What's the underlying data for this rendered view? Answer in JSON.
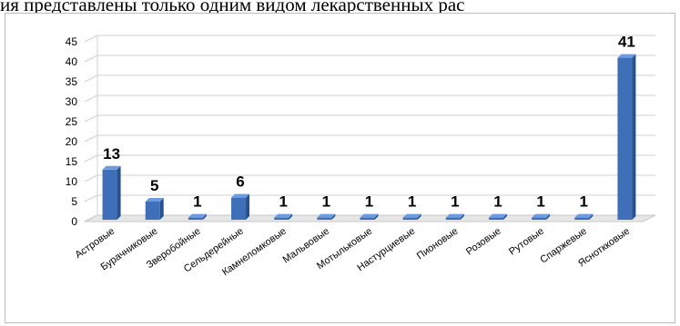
{
  "document": {
    "partial_line": "ия представлены только одним видом лекарственных рас"
  },
  "chart_data": {
    "type": "bar",
    "categories": [
      "Астровые",
      "Бурачниковые",
      "Зверобойные",
      "Сельдерейные",
      "Камнеломковые",
      "Мальвовые",
      "Мотыльковые",
      "Настурциевые",
      "Пионовые",
      "Розовые",
      "Рутовые",
      "Спаржевые",
      "Ясноткковые"
    ],
    "values": [
      13,
      5,
      1,
      6,
      1,
      1,
      1,
      1,
      1,
      1,
      1,
      1,
      41
    ],
    "yticks": [
      0,
      5,
      10,
      15,
      20,
      25,
      30,
      35,
      40,
      45
    ],
    "ylim": [
      0,
      45
    ],
    "grid": true,
    "data_labels": true,
    "colors": {
      "bar_top": "#6d9be0",
      "bar_main": "#3f6fb8",
      "bar_dark": "#27508f",
      "grid": "#d0d0d0",
      "floor": "#e6e6e6"
    }
  }
}
